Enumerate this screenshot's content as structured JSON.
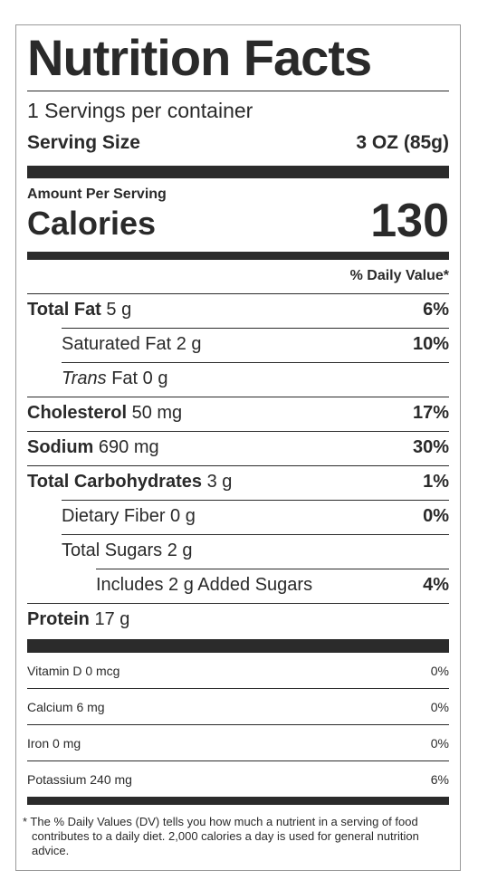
{
  "title": "Nutrition Facts",
  "servings_per_container": "1 Servings per container",
  "serving_size_label": "Serving Size",
  "serving_size_value": "3 OZ (85g)",
  "amount_per_serving": "Amount Per Serving",
  "calories_label": "Calories",
  "calories_value": "130",
  "daily_value_header": "% Daily Value*",
  "nutrients": [
    {
      "name": "Total Fat",
      "amount": "5 g",
      "pct": "6%"
    },
    {
      "name": "Saturated Fat",
      "amount": "2 g",
      "pct": "10%"
    },
    {
      "name_italic": "Trans",
      "name": "Fat",
      "amount": "0 g",
      "pct": ""
    },
    {
      "name": "Cholesterol",
      "amount": "50 mg",
      "pct": "17%"
    },
    {
      "name": "Sodium",
      "amount": "690 mg",
      "pct": "30%"
    },
    {
      "name": "Total Carbohydrates",
      "amount": "3 g",
      "pct": "1%"
    },
    {
      "name": "Dietary Fiber",
      "amount": "0 g",
      "pct": "0%"
    },
    {
      "name": "Total Sugars",
      "amount": "2 g",
      "pct": ""
    },
    {
      "name": "Includes 2 g Added Sugars",
      "amount": "",
      "pct": "4%"
    },
    {
      "name": "Protein",
      "amount": "17 g",
      "pct": ""
    }
  ],
  "vitamins": [
    {
      "label": "Vitamin D 0 mcg",
      "pct": "0%"
    },
    {
      "label": "Calcium 6 mg",
      "pct": "0%"
    },
    {
      "label": "Iron 0 mg",
      "pct": "0%"
    },
    {
      "label": "Potassium 240 mg",
      "pct": "6%"
    }
  ],
  "footnote": "* The % Daily Values (DV) tells you how much a nutrient in a serving of food contributes to a daily diet. 2,000 calories a day is used for general nutrition advice."
}
